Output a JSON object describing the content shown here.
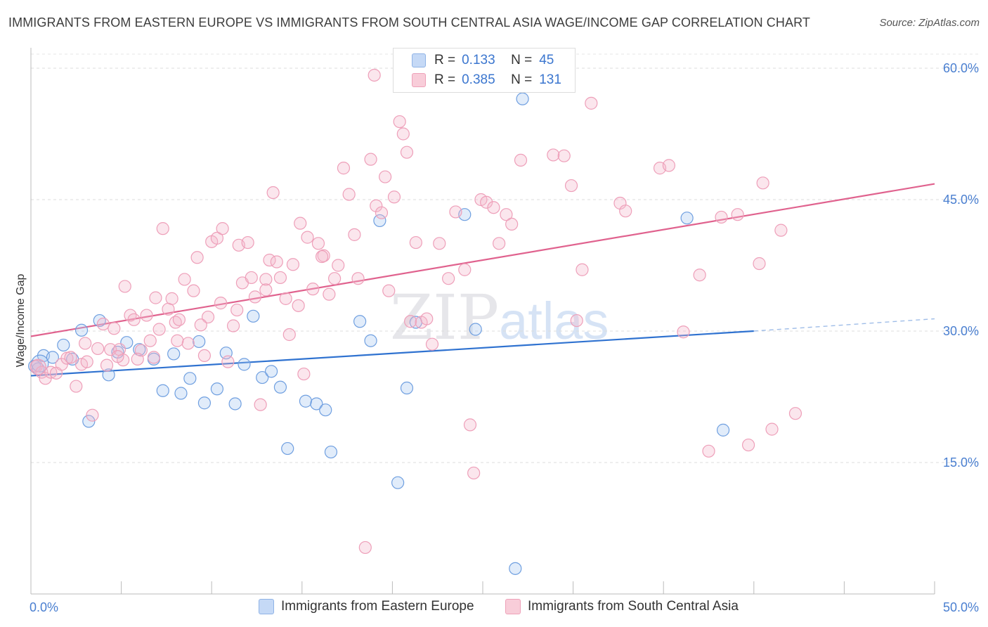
{
  "title": "IMMIGRANTS FROM EASTERN EUROPE VS IMMIGRANTS FROM SOUTH CENTRAL ASIA WAGE/INCOME GAP CORRELATION CHART",
  "source": "Source: ZipAtlas.com",
  "watermark": {
    "zip": "ZIP",
    "atlas": "atlas"
  },
  "legend": {
    "rows": [
      {
        "r_label": "R =",
        "r_value": "0.133",
        "n_label": "N =",
        "n_value": "45"
      },
      {
        "r_label": "R =",
        "r_value": "0.385",
        "n_label": "N =",
        "n_value": "131"
      }
    ]
  },
  "colors": {
    "blue_fill": "#a9c8f0",
    "blue_line": "#2f72d0",
    "pink_fill": "#f4b8cb",
    "pink_line": "#e0628e",
    "tick_text": "#4a7fd0"
  },
  "chart_data": {
    "type": "scatter",
    "title": "IMMIGRANTS FROM EASTERN EUROPE VS IMMIGRANTS FROM SOUTH CENTRAL ASIA WAGE/INCOME GAP CORRELATION CHART",
    "ylabel": "Wage/Income Gap",
    "xlabel": "",
    "x_ticks": [
      "0.0%",
      "50.0%"
    ],
    "y_ticks": [
      "15.0%",
      "30.0%",
      "45.0%",
      "60.0%"
    ],
    "xlim": [
      0,
      50
    ],
    "ylim": [
      0,
      63
    ],
    "grid": "horizontal-dashed",
    "legend_placement": "top-center",
    "series": [
      {
        "name": "Immigrants from Eastern Europe",
        "color": "#a9c8f0",
        "trend": {
          "x": [
            0,
            40
          ],
          "y": [
            24.9,
            30.0
          ],
          "dashed_to": [
            50,
            31.4
          ]
        },
        "points": [
          [
            0.2,
            26.0
          ],
          [
            0.7,
            27.2
          ],
          [
            1.2,
            27.0
          ],
          [
            1.8,
            28.4
          ],
          [
            2.3,
            26.8
          ],
          [
            2.8,
            30.1
          ],
          [
            3.2,
            19.7
          ],
          [
            3.8,
            31.2
          ],
          [
            4.3,
            25.0
          ],
          [
            4.8,
            27.6
          ],
          [
            5.3,
            28.7
          ],
          [
            6.0,
            27.9
          ],
          [
            6.8,
            26.8
          ],
          [
            7.3,
            23.2
          ],
          [
            7.9,
            27.4
          ],
          [
            8.3,
            22.9
          ],
          [
            8.8,
            24.6
          ],
          [
            9.3,
            28.8
          ],
          [
            9.6,
            21.8
          ],
          [
            10.3,
            23.4
          ],
          [
            10.8,
            27.5
          ],
          [
            11.3,
            21.7
          ],
          [
            11.8,
            26.2
          ],
          [
            12.3,
            31.7
          ],
          [
            12.8,
            24.7
          ],
          [
            13.3,
            25.4
          ],
          [
            13.8,
            23.6
          ],
          [
            14.2,
            16.6
          ],
          [
            15.2,
            22.0
          ],
          [
            15.8,
            21.7
          ],
          [
            16.3,
            21.0
          ],
          [
            16.6,
            16.2
          ],
          [
            18.2,
            31.1
          ],
          [
            18.8,
            28.9
          ],
          [
            19.3,
            42.6
          ],
          [
            20.3,
            12.7
          ],
          [
            20.8,
            23.5
          ],
          [
            21.3,
            31.0
          ],
          [
            24.0,
            43.3
          ],
          [
            24.6,
            30.2
          ],
          [
            26.8,
            2.9
          ],
          [
            27.2,
            56.5
          ],
          [
            36.3,
            42.9
          ],
          [
            38.3,
            18.7
          ],
          [
            0.4,
            25.7
          ]
        ]
      },
      {
        "name": "Immigrants from South Central Asia",
        "color": "#f4b8cb",
        "trend": {
          "x": [
            0,
            50
          ],
          "y": [
            29.4,
            46.8
          ]
        },
        "points": [
          [
            0.3,
            26.0
          ],
          [
            0.6,
            25.3
          ],
          [
            0.8,
            24.6
          ],
          [
            1.1,
            25.3
          ],
          [
            1.4,
            25.2
          ],
          [
            1.7,
            26.2
          ],
          [
            2.0,
            26.9
          ],
          [
            2.2,
            27.0
          ],
          [
            2.5,
            23.7
          ],
          [
            2.8,
            26.2
          ],
          [
            3.0,
            28.6
          ],
          [
            3.1,
            26.5
          ],
          [
            3.4,
            20.4
          ],
          [
            3.7,
            28.0
          ],
          [
            4.0,
            30.8
          ],
          [
            4.2,
            26.1
          ],
          [
            4.4,
            27.9
          ],
          [
            4.6,
            30.3
          ],
          [
            4.9,
            27.9
          ],
          [
            5.1,
            26.7
          ],
          [
            5.2,
            35.1
          ],
          [
            5.5,
            31.8
          ],
          [
            5.7,
            31.3
          ],
          [
            6.1,
            27.8
          ],
          [
            6.4,
            31.8
          ],
          [
            6.6,
            28.9
          ],
          [
            6.9,
            33.8
          ],
          [
            7.1,
            30.2
          ],
          [
            7.3,
            41.7
          ],
          [
            7.6,
            32.5
          ],
          [
            7.8,
            33.7
          ],
          [
            8.0,
            31.0
          ],
          [
            8.2,
            31.3
          ],
          [
            8.5,
            35.9
          ],
          [
            8.7,
            28.6
          ],
          [
            9.0,
            34.6
          ],
          [
            9.2,
            38.4
          ],
          [
            9.6,
            27.2
          ],
          [
            9.8,
            31.6
          ],
          [
            10.0,
            40.2
          ],
          [
            10.3,
            40.6
          ],
          [
            10.5,
            33.2
          ],
          [
            10.6,
            41.7
          ],
          [
            10.9,
            26.5
          ],
          [
            11.2,
            30.6
          ],
          [
            11.5,
            39.8
          ],
          [
            11.7,
            35.5
          ],
          [
            12.0,
            40.1
          ],
          [
            12.2,
            36.1
          ],
          [
            12.4,
            33.9
          ],
          [
            12.7,
            21.6
          ],
          [
            13.0,
            35.9
          ],
          [
            13.2,
            38.1
          ],
          [
            13.4,
            45.8
          ],
          [
            13.6,
            37.9
          ],
          [
            13.8,
            36.1
          ],
          [
            14.1,
            33.7
          ],
          [
            14.3,
            29.6
          ],
          [
            14.5,
            37.6
          ],
          [
            14.8,
            32.9
          ],
          [
            15.1,
            25.1
          ],
          [
            15.3,
            40.7
          ],
          [
            15.6,
            34.8
          ],
          [
            15.9,
            40.0
          ],
          [
            16.2,
            38.6
          ],
          [
            16.5,
            34.2
          ],
          [
            16.8,
            36.0
          ],
          [
            17.0,
            37.5
          ],
          [
            17.3,
            48.6
          ],
          [
            17.6,
            45.6
          ],
          [
            17.9,
            41.0
          ],
          [
            18.1,
            36.0
          ],
          [
            18.5,
            5.3
          ],
          [
            18.8,
            49.6
          ],
          [
            19.1,
            44.3
          ],
          [
            19.4,
            43.5
          ],
          [
            19.6,
            47.6
          ],
          [
            19.8,
            34.6
          ],
          [
            20.1,
            45.3
          ],
          [
            20.4,
            53.9
          ],
          [
            20.6,
            52.5
          ],
          [
            20.8,
            50.4
          ],
          [
            21.0,
            31.1
          ],
          [
            21.3,
            40.1
          ],
          [
            21.6,
            31.0
          ],
          [
            21.9,
            31.4
          ],
          [
            22.2,
            28.5
          ],
          [
            22.6,
            40.0
          ],
          [
            23.1,
            36.0
          ],
          [
            23.5,
            43.6
          ],
          [
            24.0,
            37.0
          ],
          [
            24.3,
            19.3
          ],
          [
            24.5,
            13.8
          ],
          [
            24.9,
            45.0
          ],
          [
            25.2,
            44.7
          ],
          [
            25.6,
            44.1
          ],
          [
            25.9,
            40.0
          ],
          [
            26.3,
            43.3
          ],
          [
            26.6,
            42.2
          ],
          [
            27.1,
            49.5
          ],
          [
            28.9,
            50.1
          ],
          [
            29.5,
            50.0
          ],
          [
            29.9,
            46.6
          ],
          [
            30.2,
            31.2
          ],
          [
            30.5,
            37.0
          ],
          [
            31.0,
            56.0
          ],
          [
            32.6,
            44.6
          ],
          [
            32.9,
            43.7
          ],
          [
            34.8,
            48.6
          ],
          [
            35.3,
            48.9
          ],
          [
            36.1,
            29.9
          ],
          [
            37.0,
            36.4
          ],
          [
            37.5,
            16.3
          ],
          [
            38.2,
            43.0
          ],
          [
            39.1,
            43.3
          ],
          [
            39.7,
            17.0
          ],
          [
            40.3,
            37.7
          ],
          [
            40.5,
            46.9
          ],
          [
            41.0,
            18.8
          ],
          [
            41.5,
            41.5
          ],
          [
            42.3,
            20.6
          ],
          [
            14.9,
            42.3
          ],
          [
            16.1,
            38.5
          ],
          [
            13.0,
            34.7
          ],
          [
            11.4,
            32.4
          ],
          [
            9.4,
            30.7
          ],
          [
            8.1,
            28.9
          ],
          [
            6.8,
            27.0
          ],
          [
            5.9,
            26.8
          ],
          [
            4.8,
            27.1
          ],
          [
            19.0,
            59.2
          ]
        ]
      }
    ]
  },
  "bottom_legend": [
    "Immigrants from Eastern Europe",
    "Immigrants from South Central Asia"
  ]
}
